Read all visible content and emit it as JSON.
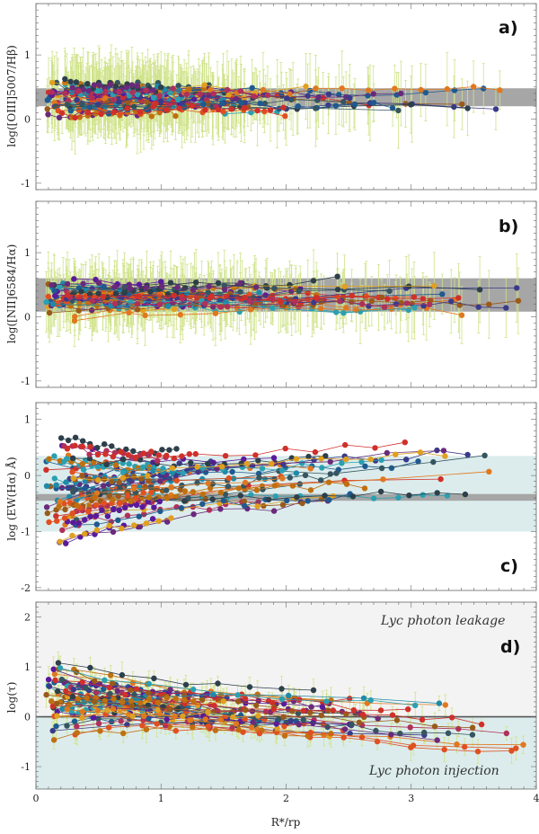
{
  "chart_data": [
    {
      "panel": "a)",
      "type": "line",
      "ylabel": "log([OIII]5007/Hβ)",
      "xlabel": "",
      "xlim": [
        0,
        4
      ],
      "ylim": [
        -1.1,
        1.8
      ],
      "yticks": [
        "-1",
        "0",
        "1"
      ],
      "bands": [
        {
          "ymin": 0.2,
          "ymax": 0.48,
          "color": "#a6a6a6"
        }
      ],
      "series_count": 40,
      "series_mean_y": 0.33,
      "series_slope": -0.02,
      "series_spread": 0.18,
      "series_start_spread": 0.22,
      "errorbar_halfwidth": 0.55,
      "point_seed": 11
    },
    {
      "panel": "b)",
      "type": "line",
      "ylabel": "log([NII]6584/Hα)",
      "xlabel": "",
      "xlim": [
        0,
        4
      ],
      "ylim": [
        -1.1,
        1.8
      ],
      "yticks": [
        "-1",
        "0",
        "1"
      ],
      "bands": [
        {
          "ymin": 0.08,
          "ymax": 0.6,
          "color": "#a6a6a6"
        }
      ],
      "series_count": 40,
      "series_mean_y": 0.32,
      "series_slope": 0.0,
      "series_spread": 0.16,
      "series_start_spread": 0.3,
      "errorbar_halfwidth": 0.5,
      "point_seed": 23
    },
    {
      "panel": "c)",
      "type": "line",
      "ylabel": "log (EW(Hα) Å)",
      "xlabel": "",
      "xlim": [
        0,
        4
      ],
      "ylim": [
        -2.05,
        1.3
      ],
      "yticks": [
        "-2",
        "-1",
        "0",
        "1"
      ],
      "bands": [
        {
          "ymin": -1.0,
          "ymax": 0.35,
          "color": "#dcecec"
        },
        {
          "ymin": -0.45,
          "ymax": -0.33,
          "color": "#a6a6a6"
        }
      ],
      "series_count": 45,
      "series_mean_y": -0.3,
      "series_slope": 0.12,
      "series_spread": 0.45,
      "series_start_spread": 0.75,
      "errorbar_halfwidth": 0,
      "point_seed": 37
    },
    {
      "panel": "d)",
      "type": "line",
      "ylabel": "log(τ)",
      "xlabel": "R*/rp",
      "xlim": [
        0,
        4
      ],
      "ylim": [
        -1.45,
        2.3
      ],
      "yticks": [
        "-1",
        "0",
        "1",
        "2"
      ],
      "xticks": [
        "0",
        "1",
        "2",
        "3",
        "4"
      ],
      "bands": [
        {
          "ymin": 0,
          "ymax": 2.3,
          "color": "#f3f3f3"
        },
        {
          "ymin": -1.45,
          "ymax": 0,
          "color": "#dcecec"
        }
      ],
      "hline": 0,
      "annotations": [
        "Lyc photon leakage",
        "Lyc photon injection"
      ],
      "series_count": 45,
      "series_mean_y": 0.45,
      "series_slope": -0.18,
      "series_spread": 0.42,
      "series_start_spread": 0.7,
      "errorbar_halfwidth": 0.25,
      "point_seed": 53
    }
  ],
  "labels": {
    "panel_a": "a)",
    "panel_b": "b)",
    "panel_c": "c)",
    "panel_d": "d)",
    "ylabel_a": "log([OIII]5007/Hβ)",
    "ylabel_b": "log([NII]6584/Hα)",
    "ylabel_c": "log (EW(Hα) Å)",
    "ylabel_d": "log(τ)",
    "xlabel": "R*/rp",
    "annot_leak": "Lyc photon leakage",
    "annot_inject": "Lyc photon injection"
  },
  "palette": [
    "#5a1a9a",
    "#3a3a8a",
    "#1f5a8f",
    "#1f8aa8",
    "#2aa0b0",
    "#355560",
    "#2d3f4a",
    "#6a2a7a",
    "#b0305a",
    "#d0302a",
    "#e05020",
    "#e07820",
    "#c07010",
    "#9a5a1a",
    "#e0a020"
  ],
  "errorbar_color": "#cfe38a"
}
